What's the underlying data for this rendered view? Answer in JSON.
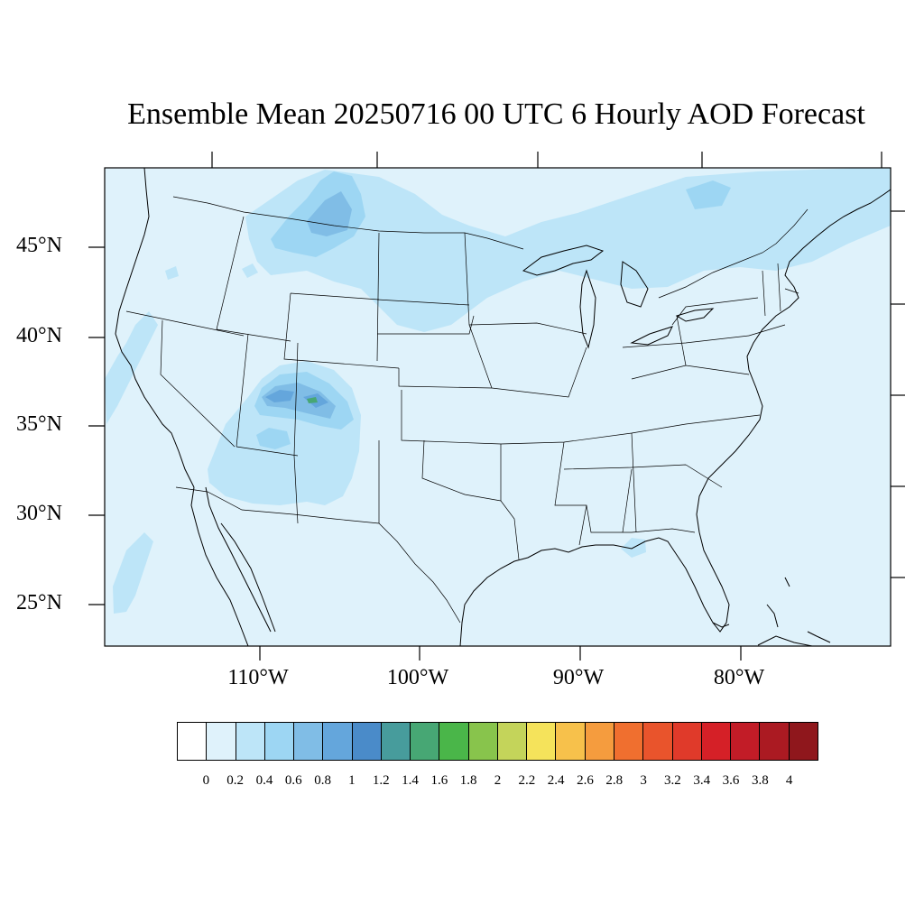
{
  "title": "Ensemble Mean 20250716 00 UTC 6 Hourly AOD Forecast",
  "lat_labels": [
    "45°N",
    "40°N",
    "35°N",
    "30°N",
    "25°N"
  ],
  "lon_labels": [
    "110°W",
    "100°W",
    "90°W",
    "80°W"
  ],
  "colorbar": {
    "colors": [
      "#ffffff",
      "#dff2fb",
      "#bde5f8",
      "#9dd6f3",
      "#80bde6",
      "#64a6dc",
      "#4a8bc9",
      "#479c9c",
      "#47a774",
      "#4ab649",
      "#88c44c",
      "#c4d45a",
      "#f5e35b",
      "#f7c14b",
      "#f59c3e",
      "#f06f2f",
      "#e9542c",
      "#e03a2a",
      "#d52027",
      "#c21c27",
      "#ab1a22",
      "#8f171c"
    ],
    "labels": [
      "0",
      "0.2",
      "0.4",
      "0.6",
      "0.8",
      "1",
      "1.2",
      "1.4",
      "1.6",
      "1.8",
      "2",
      "2.2",
      "2.4",
      "2.6",
      "2.8",
      "3",
      "3.2",
      "3.4",
      "3.6",
      "3.8",
      "4"
    ]
  },
  "map": {
    "background_color": "#dff2fb",
    "aod_features": [
      {
        "name": "northern-plains-smoke",
        "level": 0.4
      },
      {
        "name": "montana-wyoming-core",
        "level": 0.6
      },
      {
        "name": "southwest-smoke",
        "level": 0.4
      },
      {
        "name": "colorado-utah-core",
        "level": 0.8
      },
      {
        "name": "colorado-peak",
        "level": 1.6
      },
      {
        "name": "northeast-canada-smoke",
        "level": 0.4
      }
    ]
  }
}
